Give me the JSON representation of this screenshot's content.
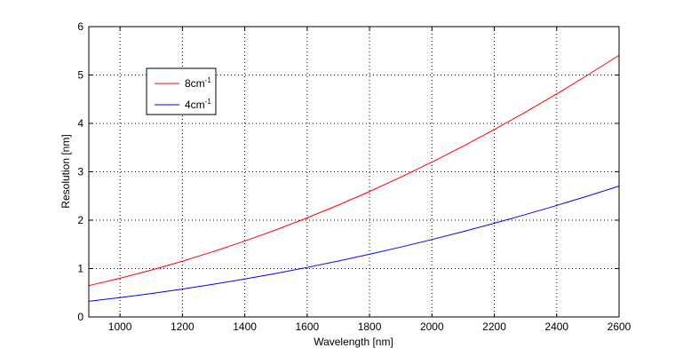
{
  "chart_data": {
    "type": "line",
    "xlabel": "Wavelength [nm]",
    "ylabel": "Resolution [nm]",
    "xlim": [
      900,
      2600
    ],
    "ylim": [
      0,
      6
    ],
    "xticks": [
      1000,
      1200,
      1400,
      1600,
      1800,
      2000,
      2200,
      2400,
      2600
    ],
    "yticks": [
      0,
      1,
      2,
      3,
      4,
      5,
      6
    ],
    "grid": true,
    "grid_style": "dotted",
    "legend_position": "top-left",
    "series": [
      {
        "name": "8cm",
        "name_superscript": "-1",
        "color": "#ff0000",
        "x": [
          900,
          1000,
          1100,
          1200,
          1300,
          1400,
          1500,
          1600,
          1700,
          1800,
          1900,
          2000,
          2100,
          2200,
          2300,
          2400,
          2500,
          2600
        ],
        "y": [
          0.648,
          0.8,
          0.968,
          1.152,
          1.352,
          1.568,
          1.8,
          2.048,
          2.312,
          2.592,
          2.888,
          3.2,
          3.528,
          3.872,
          4.232,
          4.608,
          5.0,
          5.408
        ]
      },
      {
        "name": "4cm",
        "name_superscript": "-1",
        "color": "#0000ff",
        "x": [
          900,
          1000,
          1100,
          1200,
          1300,
          1400,
          1500,
          1600,
          1700,
          1800,
          1900,
          2000,
          2100,
          2200,
          2300,
          2400,
          2500,
          2600
        ],
        "y": [
          0.324,
          0.4,
          0.484,
          0.576,
          0.676,
          0.784,
          0.9,
          1.024,
          1.156,
          1.296,
          1.444,
          1.6,
          1.764,
          1.936,
          2.116,
          2.304,
          2.5,
          2.704
        ]
      }
    ]
  }
}
